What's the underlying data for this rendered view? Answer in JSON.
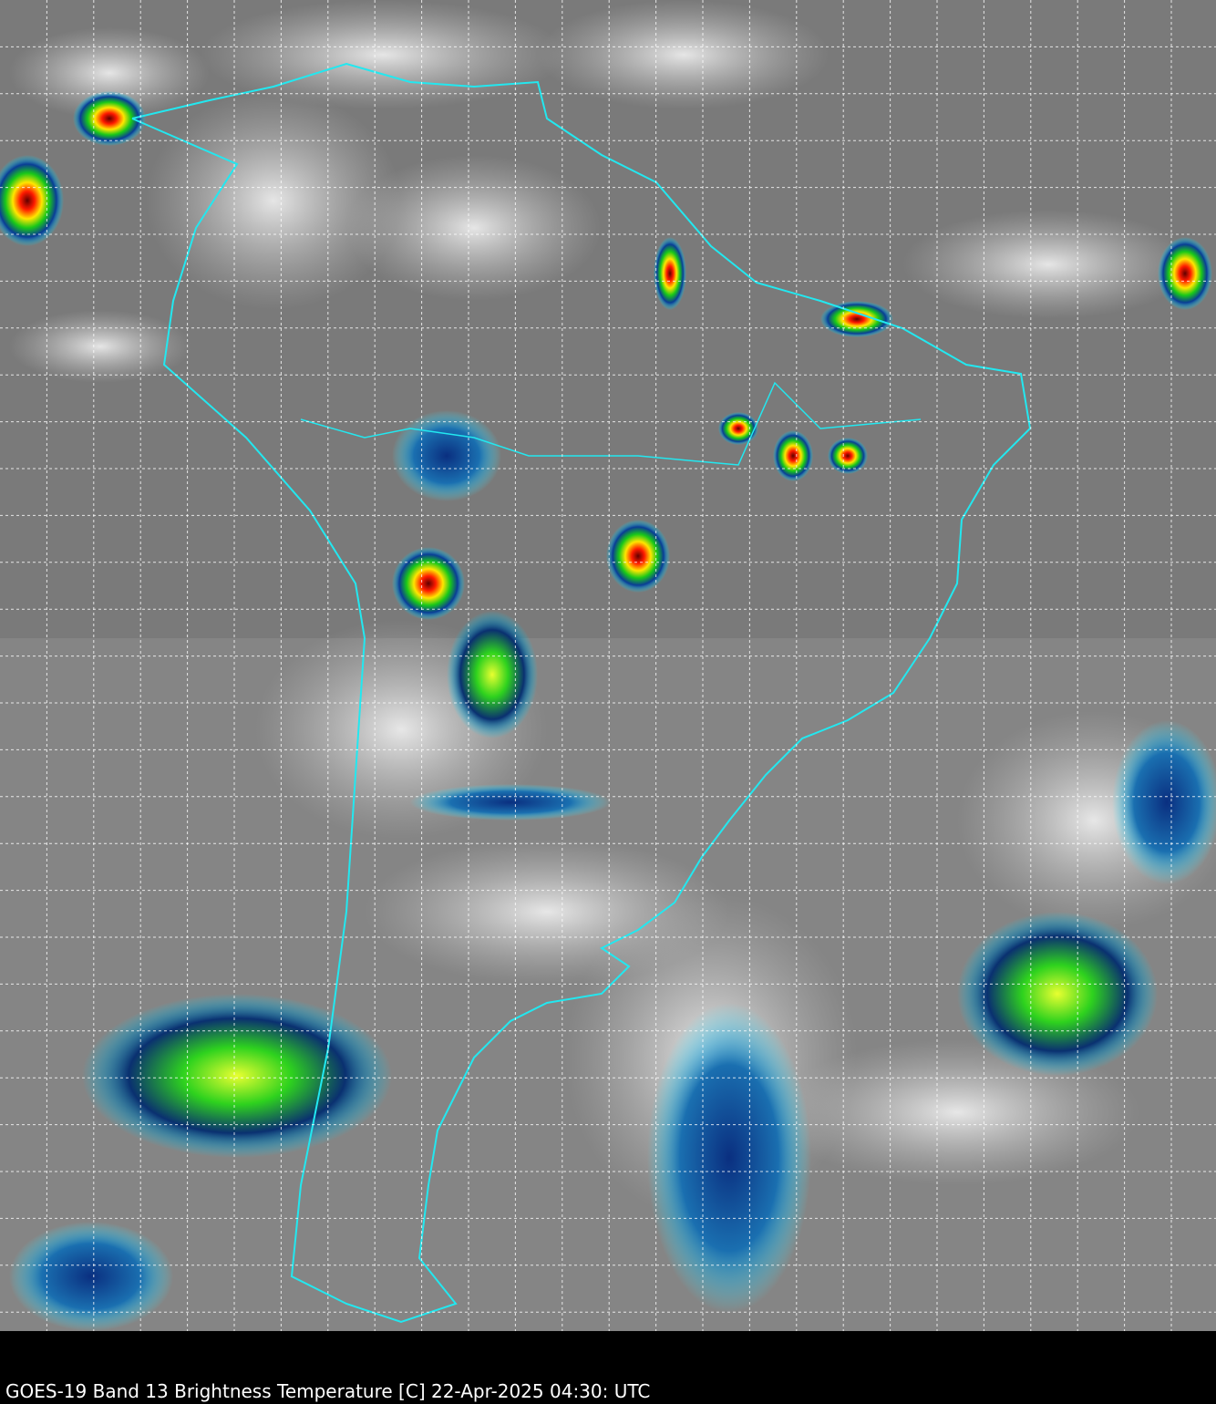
{
  "caption": "GOES-19 Band 13  Brightness Temperature [C] 22-Apr-2025 04:30: UTC",
  "colors": {
    "background": "#000000",
    "ocean_gray": "#7a7a7a",
    "border_lines": "#22e8f0",
    "grid_lines": "#ffffff",
    "cold_cloud_scale": [
      "#ffffff",
      "#00e5ff",
      "#003c8c",
      "#00c800",
      "#ffff00",
      "#ff0000",
      "#500000"
    ]
  },
  "map": {
    "grid": "dashed",
    "region": "South America"
  }
}
